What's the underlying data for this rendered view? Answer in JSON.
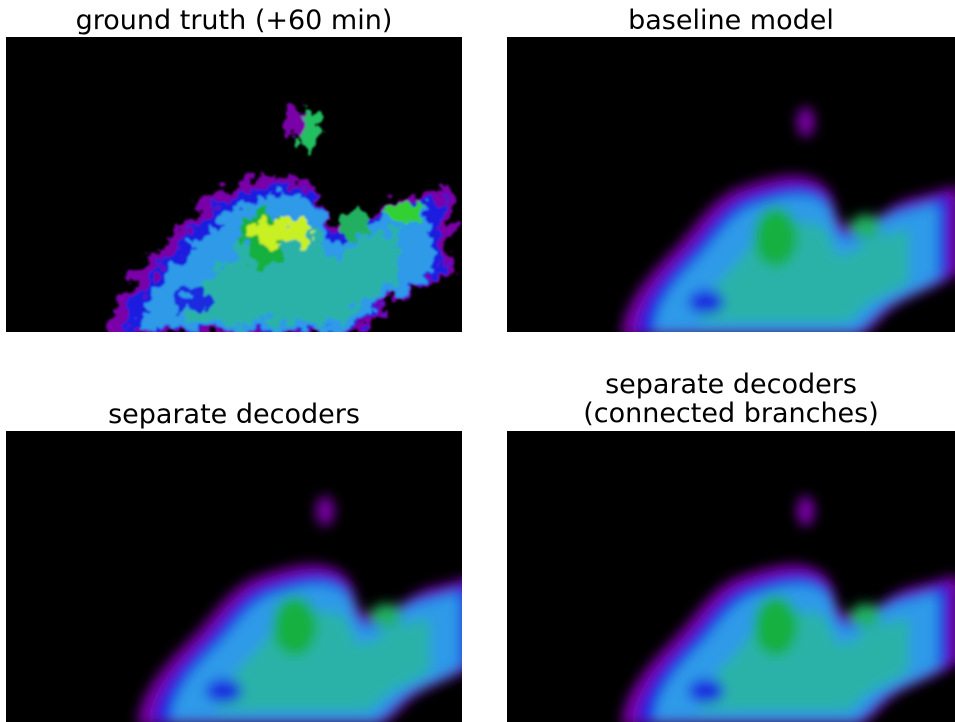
{
  "panels": [
    {
      "title_lines": [
        "ground truth (+60 min)"
      ]
    },
    {
      "title_lines": [
        "baseline model"
      ]
    },
    {
      "title_lines": [
        "separate decoders"
      ]
    },
    {
      "title_lines": [
        "separate decoders",
        "(connected branches)"
      ]
    }
  ]
}
